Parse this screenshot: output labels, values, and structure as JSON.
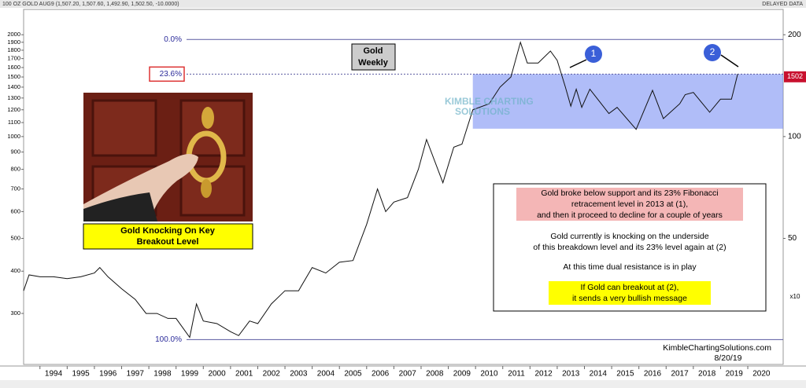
{
  "header": {
    "title": "100 OZ GOLD AUG9 (1,507.20, 1,507.60, 1,492.90, 1,502.50, -10.0000)",
    "status": "DELAYED DATA"
  },
  "chart_data": {
    "type": "line",
    "color": "#111111",
    "log_scale": true,
    "x": [
      1993.4,
      1993.6,
      1994.0,
      1994.5,
      1995.0,
      1995.5,
      1996.0,
      1996.2,
      1996.5,
      1997.0,
      1997.5,
      1997.9,
      1998.3,
      1998.7,
      1999.0,
      1999.5,
      1999.75,
      2000.0,
      2000.5,
      2001.0,
      2001.3,
      2001.7,
      2002.0,
      2002.5,
      2003.0,
      2003.5,
      2004.0,
      2004.5,
      2005.0,
      2005.5,
      2006.0,
      2006.4,
      2006.7,
      2007.0,
      2007.5,
      2007.9,
      2008.2,
      2008.8,
      2009.2,
      2009.5,
      2009.9,
      2010.5,
      2010.9,
      2011.3,
      2011.65,
      2011.9,
      2012.3,
      2012.75,
      2013.0,
      2013.3,
      2013.5,
      2013.7,
      2013.9,
      2014.2,
      2014.9,
      2015.2,
      2015.9,
      2016.5,
      2016.9,
      2017.5,
      2017.7,
      2018.0,
      2018.6,
      2019.0,
      2019.4,
      2019.63
    ],
    "values": [
      350,
      390,
      385,
      385,
      380,
      385,
      395,
      410,
      385,
      355,
      330,
      300,
      300,
      290,
      290,
      255,
      320,
      285,
      280,
      265,
      258,
      285,
      280,
      320,
      350,
      350,
      410,
      395,
      425,
      430,
      550,
      700,
      600,
      640,
      660,
      800,
      980,
      730,
      930,
      950,
      1200,
      1250,
      1400,
      1500,
      1900,
      1650,
      1650,
      1790,
      1680,
      1400,
      1230,
      1380,
      1220,
      1380,
      1170,
      1220,
      1050,
      1370,
      1130,
      1250,
      1330,
      1350,
      1180,
      1290,
      1290,
      1530
    ],
    "xlim": [
      1993.4,
      2021.3
    ],
    "xticks": [
      1994,
      1995,
      1996,
      1997,
      1998,
      1999,
      2000,
      2001,
      2002,
      2003,
      2004,
      2005,
      2006,
      2007,
      2008,
      2009,
      2010,
      2011,
      2012,
      2013,
      2014,
      2015,
      2016,
      2017,
      2018,
      2019,
      2020
    ],
    "ylim": [
      212,
      2376
    ],
    "yticks": [
      300,
      400,
      500,
      600,
      700,
      800,
      900,
      1000,
      1100,
      1200,
      1300,
      1400,
      1500,
      1600,
      1700,
      1800,
      1900,
      2000
    ],
    "y2lim": [
      21.2,
      237.6
    ],
    "y2ticks": [
      50,
      100,
      200
    ],
    "y2_label": "x10",
    "last_price": 1502,
    "fib_levels": [
      {
        "level": "0.0%",
        "price": 1937
      },
      {
        "level": "23.6%",
        "price": 1530
      },
      {
        "level": "100.0%",
        "price": 251
      }
    ],
    "zone": {
      "top": 1530,
      "bottom": 1055,
      "x_start": 2009.9
    },
    "box_title": [
      "Gold",
      "Weekly"
    ],
    "callouts": [
      "1",
      "2"
    ],
    "watermark": [
      "KIMBLE CHARTING",
      "SOLUTIONS"
    ],
    "caption": [
      "Gold Knocking On Key",
      "Breakout Level"
    ],
    "commentary": {
      "pink": [
        "Gold broke below support and its 23% Fibonacci",
        "retracement level in 2013 at (1),",
        "and then it proceed to decline for a couple of years"
      ],
      "plain": [
        "Gold currently is knocking on the underside",
        "of this breakdown level and its 23% level again at (2)"
      ],
      "resistance": "At this time dual resistance is in play",
      "yellow": [
        "If Gold can breakout at (2),",
        "it sends a very bullish message"
      ]
    },
    "footer": {
      "site": "KimbleChartingSolutions.com",
      "date": "8/20/19"
    }
  }
}
